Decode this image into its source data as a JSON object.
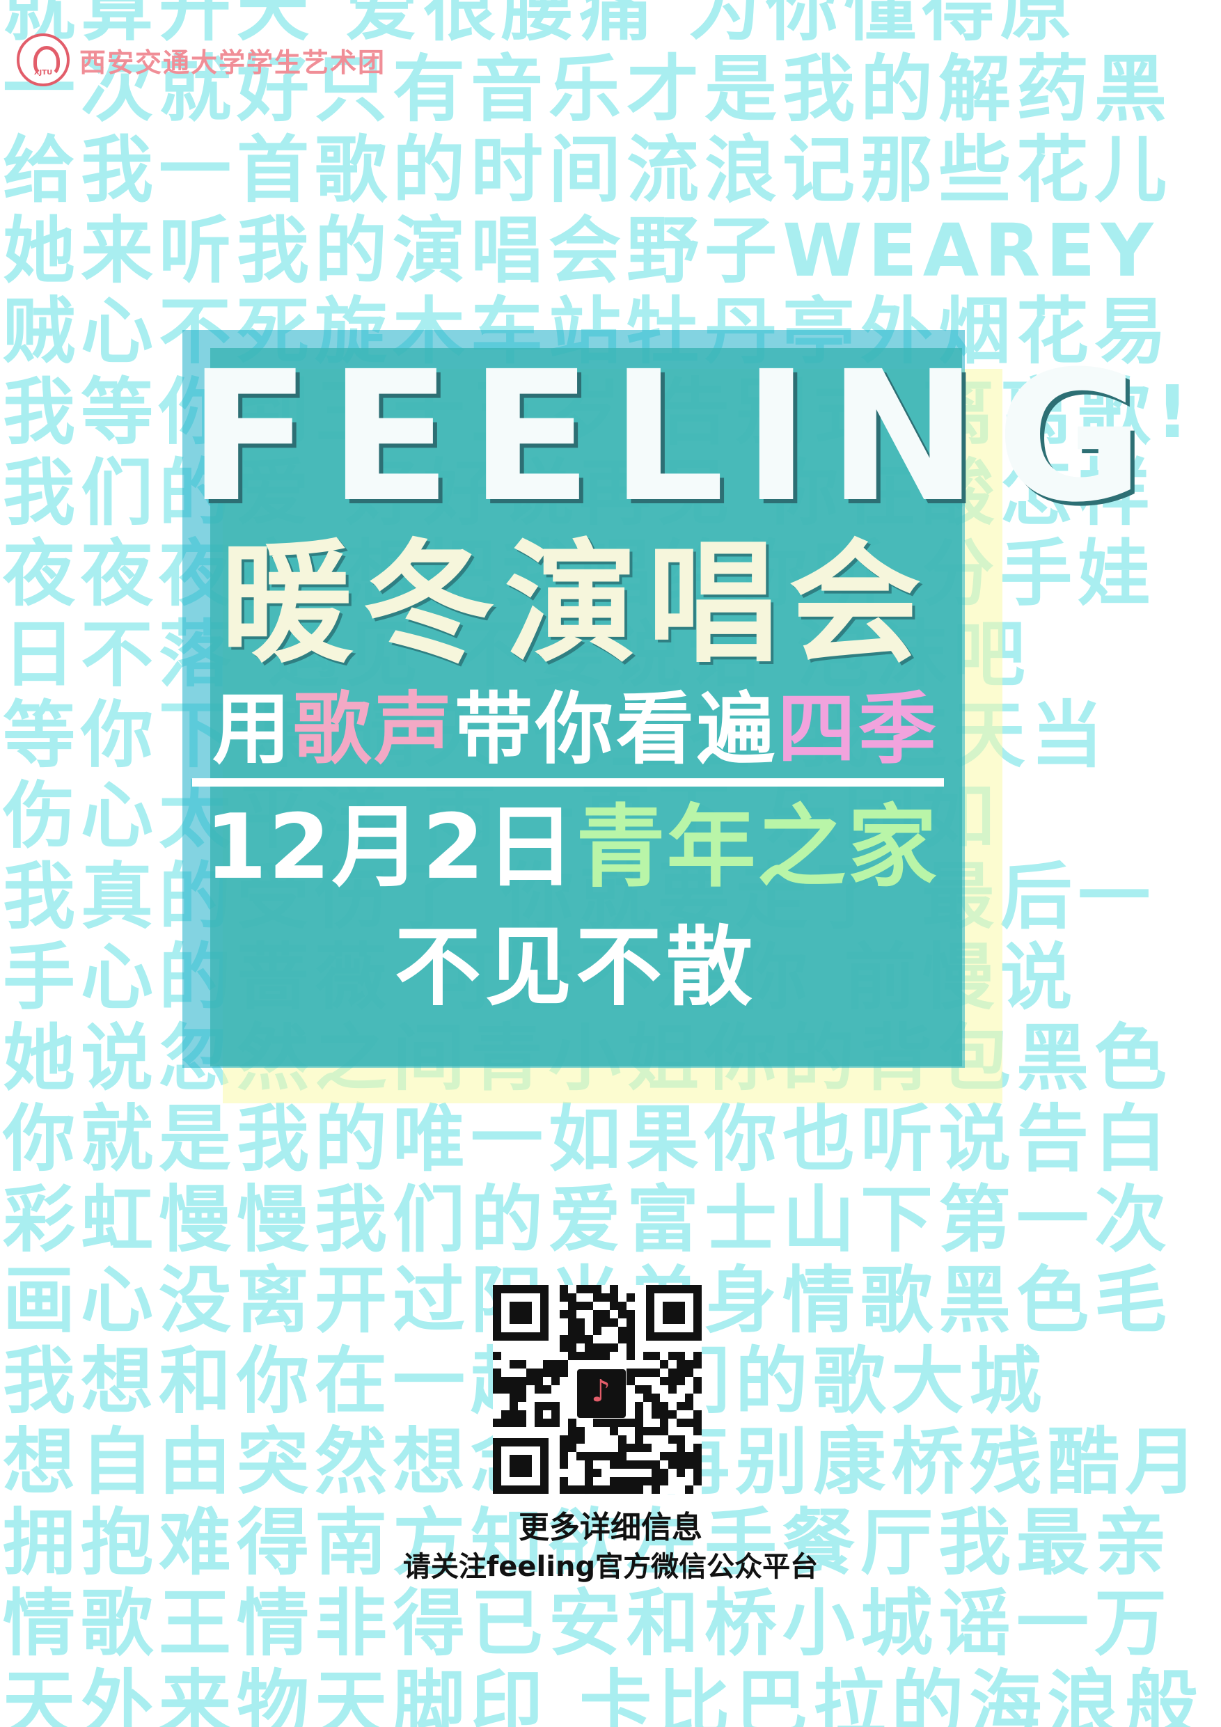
{
  "logo": {
    "org_name": "西安交通大学学生艺术团",
    "mark_text": "XJTU"
  },
  "background_lines": [
    "就算开天 爱很腰痛 为你懂得原",
    "一次就好只有音乐才是我的解药黑",
    "给我一首歌的时间流浪记那些花儿",
    "她来听我的演唱会野子WEAREY",
    "贼心不死旋木车站牡丹亭外烟花易",
    "我等你到三十五岁 告别式 离离歌!",
    "我们的爱 好好说再见 你在酸怎样",
    "夜夜夜夜 想把我唱给你听 分手娃",
    "日不落 遇见 不要说话 泡沫吧",
    "等你下课 晴天 七里香 我这天当",
    "伤心太平洋 雨一直下 乐团如",
    "我真的受伤了 你就要走了 最后一",
    "手心的蔷薇 可惜不是你 前慢说",
    "她说忽然之间青小姐你的背包黑色",
    "你就是我的唯一如果你也听说告白",
    "彩虹慢慢我们的爱富士山下第一次",
    "画心没离开过阳光单身情歌黑色毛",
    "我想和你在一起 我们的歌大城",
    "想自由突然想念你 再别康桥残酷月",
    "拥抱难得南方知欲左手餐厅我最亲",
    "情歌王情非得已安和桥小城谣一万",
    "天外来物天脚印 卡比巴拉的海浪般"
  ],
  "poster": {
    "title_en": "FEELING",
    "title_zh": "暖冬演唱会",
    "slogan_a": "用",
    "slogan_b": "歌声",
    "slogan_c": "带你看遍",
    "slogan_d": "四季",
    "date": "12月2日",
    "venue": "青年之家",
    "tagline": "不见不散"
  },
  "qr": {
    "icon": "qr-code-icon"
  },
  "info": {
    "line1": "更多详细信息",
    "line2": "请关注feeling官方微信公众平台"
  },
  "colors": {
    "background_text": "#a9eef0",
    "panel_teal": "#3cb4b4",
    "panel_blue": "#1eafc8",
    "panel_yellow": "#fafaaa",
    "accent_pink": "#f3a9c5",
    "accent_magenta": "#f1a3dd",
    "accent_green": "#b9f5a8",
    "logo_red": "#e25d6a"
  }
}
